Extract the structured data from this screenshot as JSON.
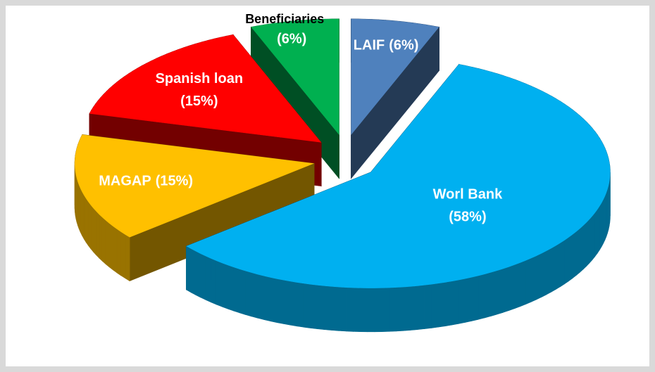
{
  "chart_data": {
    "type": "pie3d",
    "categories": [
      "LAIF",
      "Worl Bank",
      "MAGAP",
      "Spanish loan",
      "Beneficiaries"
    ],
    "values": [
      6,
      58,
      15,
      15,
      6
    ],
    "value_labels": [
      "(6%)",
      "(58%)",
      "(15%)",
      "(15%)",
      "(6%)"
    ],
    "colors": [
      "#4f81bd",
      "#00b0f0",
      "#ffc000",
      "#ff0000",
      "#00b050"
    ]
  }
}
